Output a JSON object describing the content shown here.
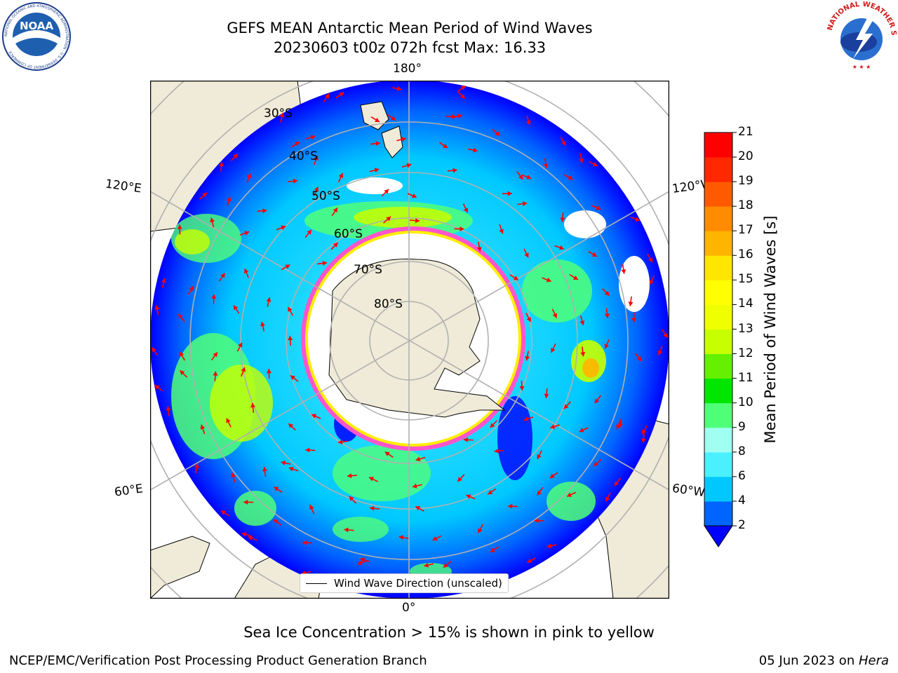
{
  "header": {
    "title_line1": "GEFS MEAN Antarctic Mean Period of Wind Waves",
    "title_line2": "20230603 t00z 072h fcst   Max: 16.33"
  },
  "logos": {
    "noaa_text": "NOAA",
    "noaa_ring_text": "NATIONAL OCEANIC AND ATMOSPHERIC ADMINISTRATION · U.S. DEPARTMENT OF COMMERCE",
    "nws_ring_text": "NATIONAL WEATHER SERVICE"
  },
  "map": {
    "projection": "south-polar-stereographic",
    "longitude_labels": {
      "top": "180°",
      "bottom": "0°",
      "upper_left": "120°E",
      "upper_right": "120°W",
      "lower_left": "60°E",
      "lower_right": "60°W"
    },
    "latitude_labels": [
      "30°S",
      "40°S",
      "50°S",
      "60°S",
      "70°S",
      "80°S"
    ],
    "legend_label": "Wind Wave Direction (unscaled)",
    "colors": {
      "land": "#efebd8",
      "sea_ice_low": "#ff55cc",
      "sea_ice_high": "#ffee00",
      "vector": "#ff0000",
      "graticule": "#b0b0b0"
    }
  },
  "colorbar": {
    "label": "Mean Period of Wind Waves [s]",
    "ticks": [
      "2",
      "4",
      "6",
      "8",
      "9",
      "10",
      "11",
      "12",
      "13",
      "14",
      "15",
      "16",
      "17",
      "18",
      "19",
      "20",
      "21"
    ],
    "levels": [
      2,
      4,
      6,
      8,
      9,
      10,
      11,
      12,
      13,
      14,
      15,
      16,
      17,
      18,
      19,
      20,
      21
    ],
    "colors": [
      "#0064ff",
      "#00c8ff",
      "#4bf0ff",
      "#a0fff0",
      "#50ff78",
      "#00e600",
      "#64f000",
      "#c8ff00",
      "#f0ff00",
      "#ffff00",
      "#ffe600",
      "#ffb400",
      "#ff8c00",
      "#ff5a00",
      "#ff2800",
      "#ff0000"
    ],
    "under_color": "#0000ff"
  },
  "footer": {
    "note": "Sea Ice Concentration > 15% is shown in pink to yellow",
    "left": "NCEP/EMC/Verification Post Processing Product Generation Branch",
    "right_date": "05 Jun 2023 on ",
    "right_machine": "Hera"
  }
}
